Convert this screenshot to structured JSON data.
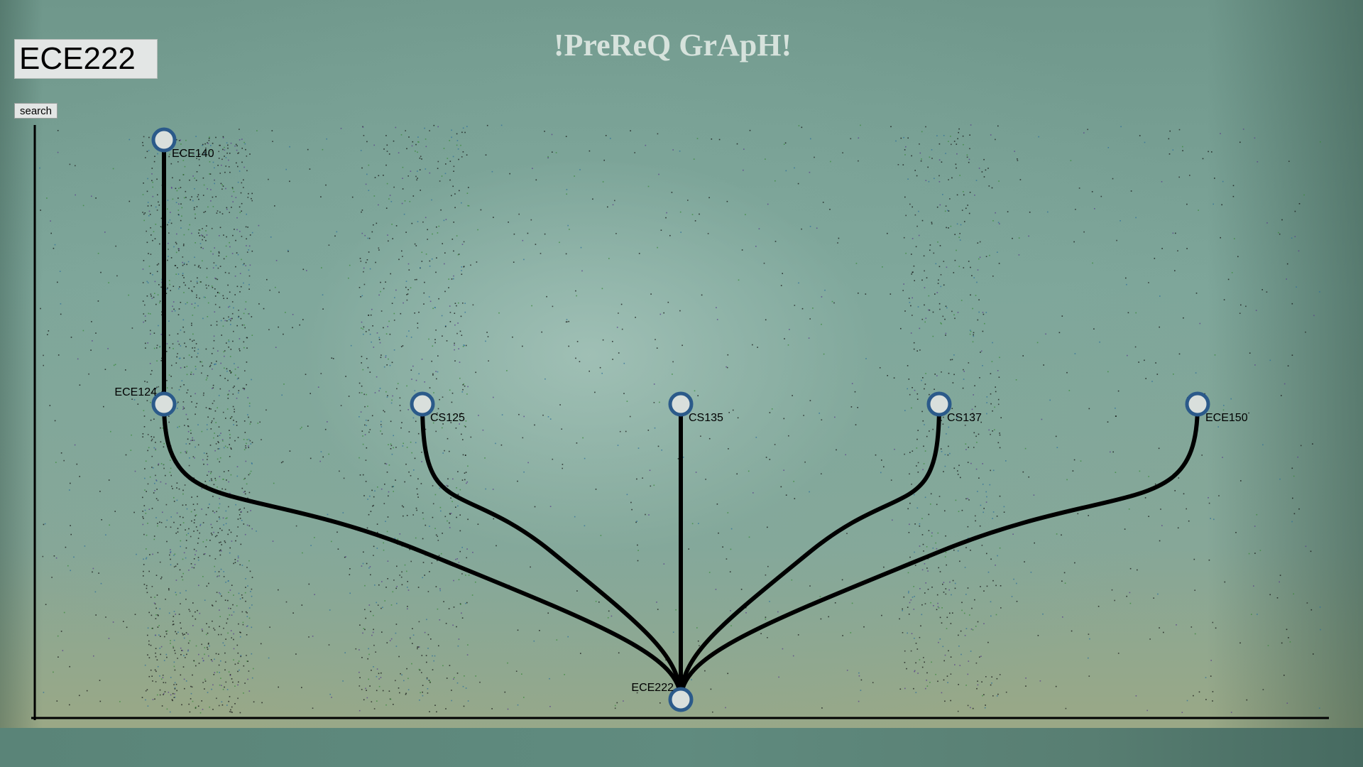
{
  "title": "!PreReQ GrApH!",
  "search": {
    "value": "ECE222",
    "button_label": "search"
  },
  "colors": {
    "node_fill": "#d9dfdc",
    "node_stroke": "#2b5a8a",
    "edge": "#000000",
    "title": "#d6e2dc"
  },
  "graph": {
    "nodes": [
      {
        "id": "ECE140",
        "label": "ECE140",
        "level": 0,
        "column": 0
      },
      {
        "id": "ECE124",
        "label": "ECE124",
        "level": 1,
        "column": 0
      },
      {
        "id": "CS125",
        "label": "CS125",
        "level": 1,
        "column": 1
      },
      {
        "id": "CS135",
        "label": "CS135",
        "level": 1,
        "column": 2
      },
      {
        "id": "CS137",
        "label": "CS137",
        "level": 1,
        "column": 3
      },
      {
        "id": "ECE150",
        "label": "ECE150",
        "level": 1,
        "column": 4
      },
      {
        "id": "ECE222",
        "label": "ECE222",
        "level": 2,
        "column": 2
      }
    ],
    "edges": [
      {
        "from": "ECE140",
        "to": "ECE124"
      },
      {
        "from": "ECE124",
        "to": "ECE222"
      },
      {
        "from": "CS125",
        "to": "ECE222"
      },
      {
        "from": "CS135",
        "to": "ECE222"
      },
      {
        "from": "CS137",
        "to": "ECE222"
      },
      {
        "from": "ECE150",
        "to": "ECE222"
      }
    ]
  }
}
